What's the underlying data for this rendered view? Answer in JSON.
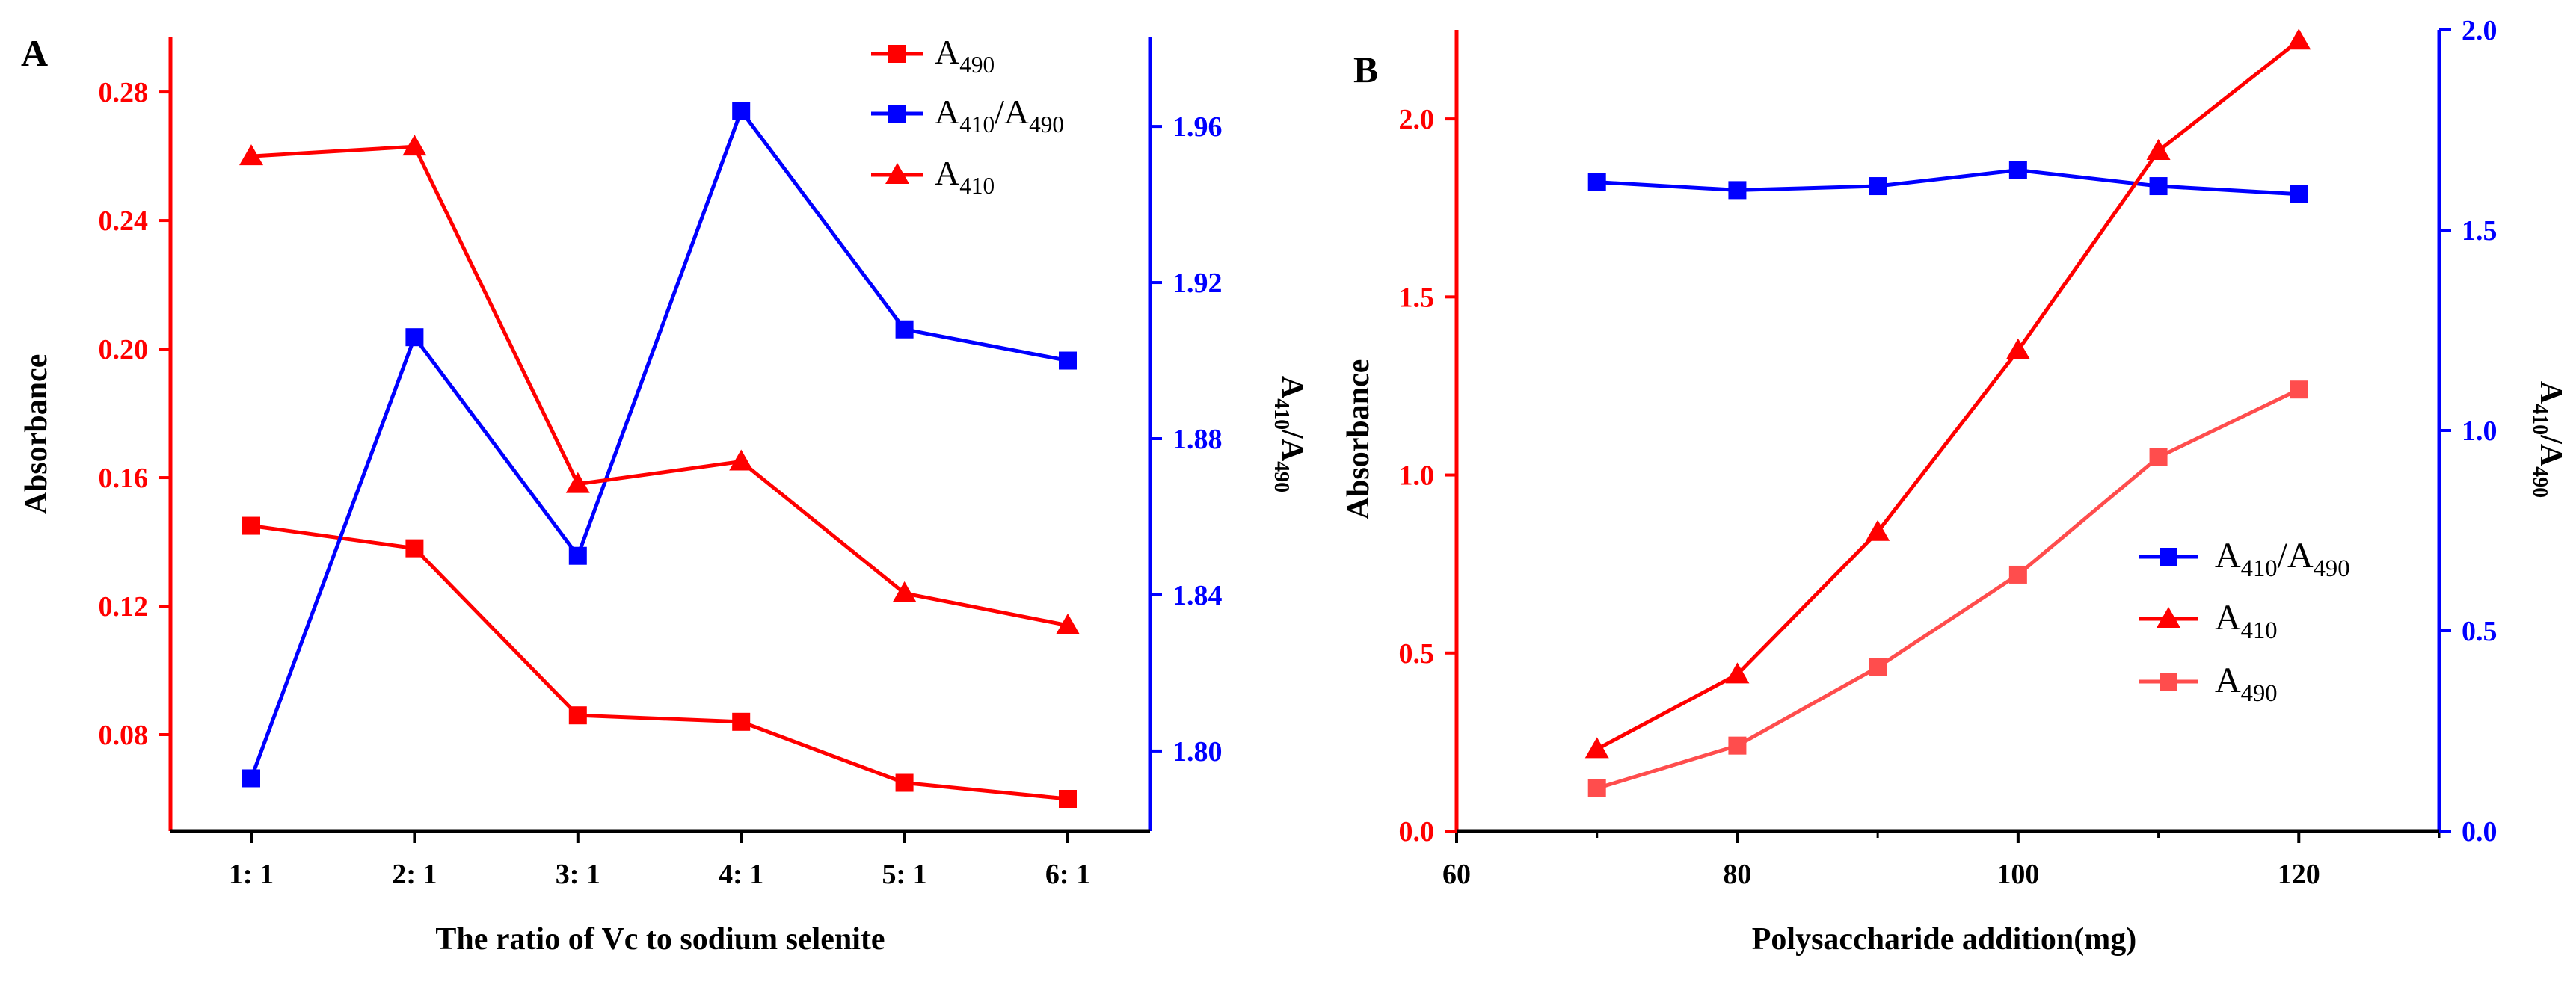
{
  "colors": {
    "red": "#ff0000",
    "blue": "#0000ff",
    "pink": "#ff4d4d",
    "black": "#000000"
  },
  "chart_data": [
    {
      "panel_label": "A",
      "type": "line",
      "categories": [
        "1: 1",
        "2: 1",
        "3: 1",
        "4: 1",
        "5: 1",
        "6: 1"
      ],
      "xlabel": "The ratio of Vc to sodium selenite",
      "ylabel": "Absorbance",
      "y2label_main": "A",
      "y2label_sub1": "410",
      "y2label_mid": "/A",
      "y2label_sub2": "490",
      "ylim": [
        0.05,
        0.297
      ],
      "y2lim": [
        1.7795,
        1.9828
      ],
      "yticks": [
        "0.08",
        "0.12",
        "0.16",
        "0.20",
        "0.24",
        "0.28"
      ],
      "y2ticks": [
        "1.80",
        "1.84",
        "1.88",
        "1.92",
        "1.96"
      ],
      "series": [
        {
          "name": "A490",
          "legend_main": "A",
          "legend_sub": "490",
          "axis": "left",
          "marker": "square",
          "values": [
            0.145,
            0.138,
            0.086,
            0.084,
            0.065,
            0.06
          ]
        },
        {
          "name": "A410/A490",
          "legend_main": "A",
          "legend_sub": "410",
          "legend_mid": "/A",
          "legend_sub2": "490",
          "axis": "right",
          "marker": "square",
          "values": [
            1.793,
            1.906,
            1.85,
            1.964,
            1.908,
            1.9
          ]
        },
        {
          "name": "A410",
          "legend_main": "A",
          "legend_sub": "410",
          "axis": "left",
          "marker": "triangle",
          "values": [
            0.26,
            0.263,
            0.158,
            0.165,
            0.124,
            0.114
          ]
        }
      ],
      "legend_position": "top-right"
    },
    {
      "panel_label": "B",
      "type": "line",
      "x": [
        70,
        80,
        90,
        100,
        110,
        120
      ],
      "xlim": [
        60,
        130
      ],
      "xticks": [
        "60",
        "80",
        "100",
        "120"
      ],
      "xlabel": "Polysaccharide addition(mg)",
      "ylabel": "Absorbance",
      "y2label_main": "A",
      "y2label_sub1": "410",
      "y2label_mid": "/A",
      "y2label_sub2": "490",
      "ylim": [
        0.0,
        2.25
      ],
      "y2lim": [
        0.0,
        2.0
      ],
      "yticks": [
        "0.0",
        "0.5",
        "1.0",
        "1.5",
        "2.0"
      ],
      "y2ticks": [
        "0.0",
        "0.5",
        "1.0",
        "1.5",
        "2.0"
      ],
      "series": [
        {
          "name": "A410/A490",
          "legend_main": "A",
          "legend_sub": "410",
          "legend_mid": "/A",
          "legend_sub2": "490",
          "axis": "right",
          "marker": "square",
          "values": [
            1.62,
            1.6,
            1.61,
            1.65,
            1.61,
            1.59
          ]
        },
        {
          "name": "A410",
          "legend_main": "A",
          "legend_sub": "410",
          "axis": "left",
          "marker": "triangle",
          "values": [
            0.23,
            0.44,
            0.84,
            1.35,
            1.91,
            2.22
          ]
        },
        {
          "name": "A490",
          "legend_main": "A",
          "legend_sub": "490",
          "axis": "left",
          "marker": "square",
          "values": [
            0.12,
            0.24,
            0.46,
            0.72,
            1.05,
            1.24
          ]
        }
      ],
      "legend_position": "center-right"
    }
  ]
}
